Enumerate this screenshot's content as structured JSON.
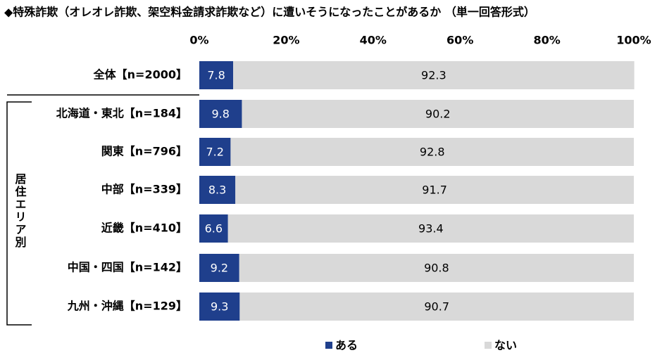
{
  "chart_data": {
    "type": "stacked_barh",
    "title": "◆特殊詐欺（オレオレ詐欺、架空料金請求詐欺など）に遭いそうになったことがあるか （単一回答形式）",
    "group_label": "居住エリア別",
    "categories": [
      "全体【n=2000】",
      "北海道・東北【n=184】",
      "関東【n=796】",
      "中部【n=339】",
      "近畿【n=410】",
      "中国・四国【n=142】",
      "九州・沖縄【n=129】"
    ],
    "series": [
      {
        "name": "ある",
        "color": "#1f3f8c",
        "values": [
          7.8,
          9.8,
          7.2,
          8.3,
          6.6,
          9.2,
          9.3
        ]
      },
      {
        "name": "ない",
        "color": "#d9d9d9",
        "values": [
          92.3,
          90.2,
          92.8,
          91.7,
          93.4,
          90.8,
          90.7
        ]
      }
    ],
    "xlim": [
      0,
      100
    ],
    "xticks": [
      {
        "value": 0,
        "label": "0%"
      },
      {
        "value": 20,
        "label": "20%"
      },
      {
        "value": 40,
        "label": "40%"
      },
      {
        "value": 60,
        "label": "60%"
      },
      {
        "value": 80,
        "label": "80%"
      },
      {
        "value": 100,
        "label": "100%"
      }
    ],
    "legend": "bottom"
  }
}
